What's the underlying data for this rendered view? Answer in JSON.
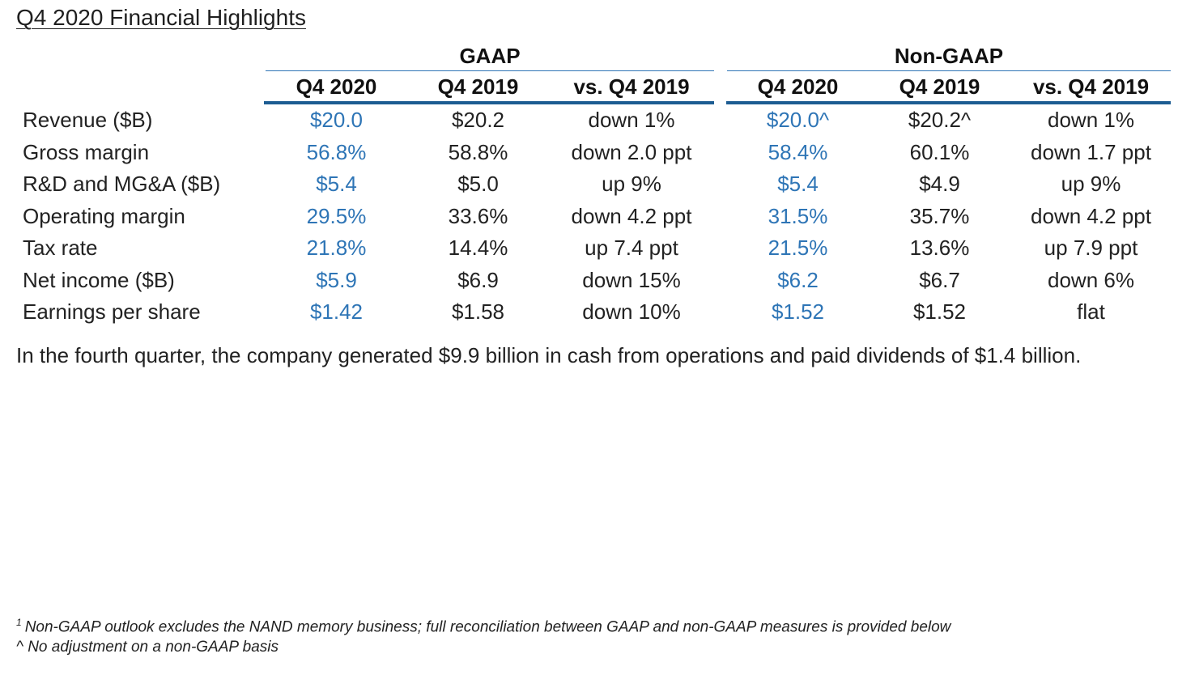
{
  "title": "Q4 2020 Financial Highlights",
  "groups": [
    {
      "label": "GAAP"
    },
    {
      "label": "Non-GAAP"
    }
  ],
  "columns": [
    "Q4 2020",
    "Q4 2019",
    "vs. Q4 2019",
    "Q4 2020",
    "Q4 2019",
    "vs. Q4 2019"
  ],
  "colors": {
    "current_quarter_value": "#2e75b6",
    "rule": "#1c5c92"
  },
  "rows": [
    {
      "label": "Revenue ($B)",
      "gaap": [
        "$20.0",
        "$20.2",
        "down 1%"
      ],
      "nongaap": [
        "$20.0^",
        "$20.2^",
        "down 1%"
      ]
    },
    {
      "label": "Gross margin",
      "gaap": [
        "56.8%",
        "58.8%",
        "down 2.0 ppt"
      ],
      "nongaap": [
        "58.4%",
        "60.1%",
        "down 1.7 ppt"
      ]
    },
    {
      "label": "R&D and MG&A ($B)",
      "gaap": [
        "$5.4",
        "$5.0",
        "up 9%"
      ],
      "nongaap": [
        "$5.4",
        "$4.9",
        "up 9%"
      ]
    },
    {
      "label": "Operating margin",
      "gaap": [
        "29.5%",
        "33.6%",
        "down 4.2 ppt"
      ],
      "nongaap": [
        "31.5%",
        "35.7%",
        "down 4.2 ppt"
      ]
    },
    {
      "label": "Tax rate",
      "gaap": [
        "21.8%",
        "14.4%",
        "up 7.4 ppt"
      ],
      "nongaap": [
        "21.5%",
        "13.6%",
        "up 7.9 ppt"
      ]
    },
    {
      "label": "Net income ($B)",
      "gaap": [
        "$5.9",
        "$6.9",
        "down 15%"
      ],
      "nongaap": [
        "$6.2",
        "$6.7",
        "down 6%"
      ]
    },
    {
      "label": "Earnings per share",
      "gaap": [
        "$1.42",
        "$1.58",
        "down 10%"
      ],
      "nongaap": [
        "$1.52",
        "$1.52",
        "flat"
      ]
    }
  ],
  "summary": "In the fourth quarter, the company generated $9.9 billion in cash from operations and paid dividends of $1.4 billion.",
  "footnotes": {
    "note1_marker": "1",
    "note1_text": "Non-GAAP outlook excludes the NAND memory business; full reconciliation between GAAP and non-GAAP measures is provided below",
    "note2_text": "^ No adjustment on a non-GAAP basis"
  }
}
